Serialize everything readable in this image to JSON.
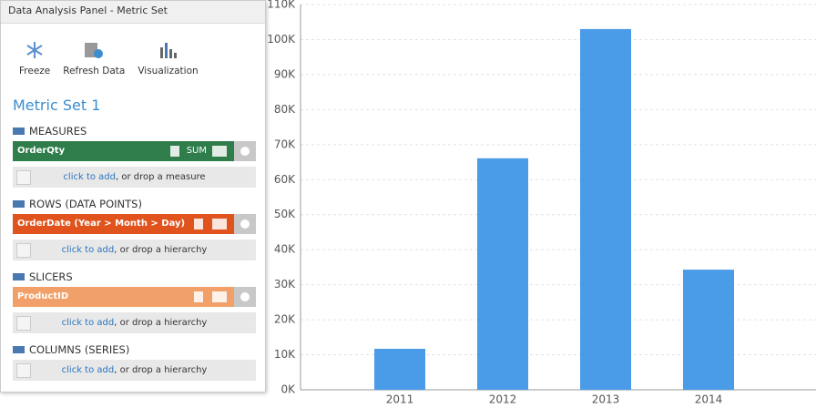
{
  "panel": {
    "title": "Data Analysis Panel - Metric Set",
    "toolbar": [
      "Freeze",
      "Refresh Data",
      "Visualization"
    ],
    "metric_set": "Metric Set 1",
    "sections": [
      {
        "heading": "MEASURES",
        "items": [
          {
            "label": "OrderQty",
            "aggregation": "SUM",
            "color": "#2e7d4b"
          }
        ],
        "add_link": "click to add",
        "add_hint": ", or drop a measure"
      },
      {
        "heading": "ROWS (DATA POINTS)",
        "items": [
          {
            "label": "OrderDate (Year > Month > Day)",
            "color": "#e0531d"
          }
        ],
        "add_link": "click to add",
        "add_hint": ", or drop a hierarchy"
      },
      {
        "heading": "SLICERS",
        "items": [
          {
            "label": "ProductID",
            "color": "#f0a068"
          }
        ],
        "add_link": "click to add",
        "add_hint": ", or drop a hierarchy"
      },
      {
        "heading": "COLUMNS (SERIES)",
        "items": [],
        "add_link": "click to add",
        "add_hint": ", or drop a hierarchy"
      }
    ]
  },
  "chart_data": {
    "type": "bar",
    "categories": [
      "2011",
      "2012",
      "2013",
      "2014"
    ],
    "values": [
      11700,
      66100,
      103000,
      34300
    ],
    "color": "#4a9be8",
    "ylim": [
      0,
      110000
    ],
    "yticks": [
      {
        "value": 0,
        "label": "0K"
      },
      {
        "value": 10000,
        "label": "10K"
      },
      {
        "value": 20000,
        "label": "20K"
      },
      {
        "value": 30000,
        "label": "30K"
      },
      {
        "value": 40000,
        "label": "40K"
      },
      {
        "value": 50000,
        "label": "50K"
      },
      {
        "value": 60000,
        "label": "60K"
      },
      {
        "value": 70000,
        "label": "70K"
      },
      {
        "value": 80000,
        "label": "80K"
      },
      {
        "value": 90000,
        "label": "90K"
      },
      {
        "value": 100000,
        "label": "100K"
      },
      {
        "value": 110000,
        "label": "110K"
      }
    ],
    "grid": true
  }
}
